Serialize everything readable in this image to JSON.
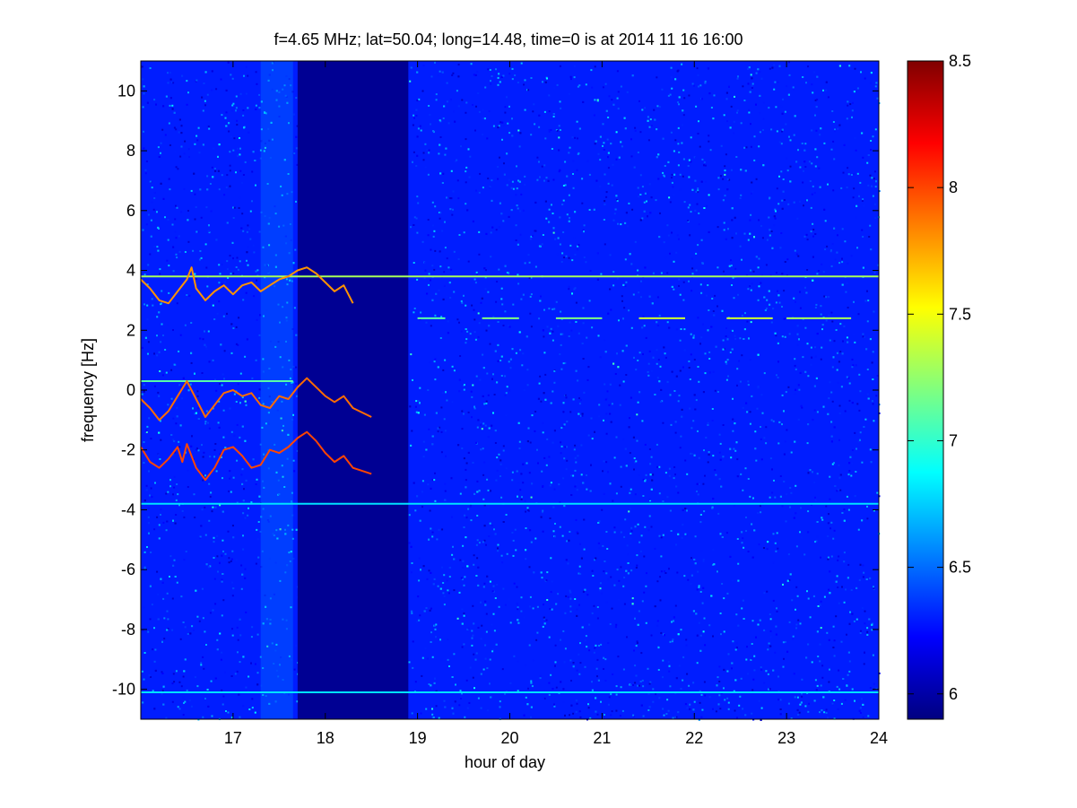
{
  "chart_data": {
    "type": "heatmap",
    "title": "f=4.65 MHz;  lat=50.04; long=14.48, time=0 is at 2014 11 16 16:00",
    "xlabel": "hour of day",
    "ylabel": "frequency [Hz]",
    "xlim": [
      16.0,
      24.0
    ],
    "ylim": [
      -11.0,
      11.0
    ],
    "x_ticks": [
      17,
      18,
      19,
      20,
      21,
      22,
      23,
      24
    ],
    "y_ticks": [
      -10,
      -8,
      -6,
      -4,
      -2,
      0,
      2,
      4,
      6,
      8,
      10
    ],
    "colorbar": {
      "colormap": "jet",
      "range": [
        5.9,
        8.5
      ],
      "ticks": [
        6,
        6.5,
        7,
        7.5,
        8,
        8.5
      ],
      "tick_labels": [
        "6",
        "6.5",
        "7",
        "7.5",
        "8",
        "8.5"
      ]
    },
    "background_level": 6.3,
    "data_gap": {
      "x_start": 17.7,
      "x_end": 18.9,
      "value": 5.95
    },
    "bright_band": {
      "x_start": 17.3,
      "x_end": 17.65,
      "level": 6.55
    },
    "traces": [
      {
        "level": 7.1,
        "points": [
          [
            16.0,
            0.3
          ],
          [
            17.65,
            0.3
          ]
        ]
      },
      {
        "level": 7.3,
        "points": [
          [
            16.0,
            3.8
          ],
          [
            24.0,
            3.8
          ]
        ]
      },
      {
        "level": 7.1,
        "points": [
          [
            19.0,
            2.4
          ],
          [
            19.3,
            2.4
          ]
        ]
      },
      {
        "level": 7.2,
        "points": [
          [
            19.7,
            2.4
          ],
          [
            20.1,
            2.4
          ]
        ]
      },
      {
        "level": 7.2,
        "points": [
          [
            20.5,
            2.4
          ],
          [
            21.0,
            2.4
          ]
        ]
      },
      {
        "level": 7.4,
        "points": [
          [
            21.4,
            2.4
          ],
          [
            21.9,
            2.4
          ]
        ]
      },
      {
        "level": 7.4,
        "points": [
          [
            22.35,
            2.4
          ],
          [
            22.85,
            2.4
          ]
        ]
      },
      {
        "level": 7.3,
        "points": [
          [
            23.0,
            2.4
          ],
          [
            23.7,
            2.4
          ]
        ]
      },
      {
        "level": 6.8,
        "points": [
          [
            16.0,
            -3.8
          ],
          [
            24.0,
            -3.8
          ]
        ]
      },
      {
        "level": 6.8,
        "points": [
          [
            16.0,
            -10.1
          ],
          [
            24.0,
            -10.1
          ]
        ]
      },
      {
        "level": 7.8,
        "points": [
          [
            16.0,
            3.7
          ],
          [
            16.1,
            3.4
          ],
          [
            16.2,
            3.0
          ],
          [
            16.3,
            2.9
          ],
          [
            16.4,
            3.3
          ],
          [
            16.5,
            3.7
          ],
          [
            16.55,
            4.1
          ],
          [
            16.6,
            3.4
          ],
          [
            16.7,
            3.0
          ],
          [
            16.8,
            3.3
          ],
          [
            16.9,
            3.5
          ],
          [
            17.0,
            3.2
          ],
          [
            17.1,
            3.5
          ],
          [
            17.2,
            3.6
          ],
          [
            17.3,
            3.3
          ],
          [
            17.4,
            3.5
          ],
          [
            17.5,
            3.7
          ],
          [
            17.6,
            3.8
          ],
          [
            17.7,
            4.0
          ],
          [
            17.8,
            4.1
          ],
          [
            17.9,
            3.9
          ],
          [
            18.0,
            3.6
          ],
          [
            18.1,
            3.3
          ],
          [
            18.2,
            3.5
          ],
          [
            18.3,
            2.9
          ]
        ]
      },
      {
        "level": 7.9,
        "points": [
          [
            16.0,
            -0.3
          ],
          [
            16.1,
            -0.6
          ],
          [
            16.2,
            -1.0
          ],
          [
            16.3,
            -0.7
          ],
          [
            16.4,
            -0.2
          ],
          [
            16.5,
            0.3
          ],
          [
            16.6,
            -0.3
          ],
          [
            16.7,
            -0.9
          ],
          [
            16.8,
            -0.5
          ],
          [
            16.9,
            -0.1
          ],
          [
            17.0,
            0.0
          ],
          [
            17.1,
            -0.2
          ],
          [
            17.2,
            -0.1
          ],
          [
            17.3,
            -0.5
          ],
          [
            17.4,
            -0.6
          ],
          [
            17.5,
            -0.2
          ],
          [
            17.6,
            -0.3
          ],
          [
            17.7,
            0.1
          ],
          [
            17.8,
            0.4
          ],
          [
            17.9,
            0.1
          ],
          [
            18.0,
            -0.2
          ],
          [
            18.1,
            -0.4
          ],
          [
            18.2,
            -0.2
          ],
          [
            18.3,
            -0.6
          ],
          [
            18.5,
            -0.9
          ]
        ]
      },
      {
        "level": 8.0,
        "points": [
          [
            16.0,
            -1.9
          ],
          [
            16.1,
            -2.4
          ],
          [
            16.2,
            -2.6
          ],
          [
            16.3,
            -2.3
          ],
          [
            16.4,
            -1.9
          ],
          [
            16.45,
            -2.4
          ],
          [
            16.5,
            -1.8
          ],
          [
            16.6,
            -2.6
          ],
          [
            16.7,
            -3.0
          ],
          [
            16.8,
            -2.6
          ],
          [
            16.9,
            -2.0
          ],
          [
            17.0,
            -1.9
          ],
          [
            17.1,
            -2.2
          ],
          [
            17.2,
            -2.6
          ],
          [
            17.3,
            -2.5
          ],
          [
            17.4,
            -2.0
          ],
          [
            17.5,
            -2.1
          ],
          [
            17.6,
            -1.9
          ],
          [
            17.7,
            -1.6
          ],
          [
            17.8,
            -1.4
          ],
          [
            17.9,
            -1.7
          ],
          [
            18.0,
            -2.1
          ],
          [
            18.1,
            -2.4
          ],
          [
            18.2,
            -2.2
          ],
          [
            18.3,
            -2.6
          ],
          [
            18.5,
            -2.8
          ]
        ]
      }
    ]
  }
}
